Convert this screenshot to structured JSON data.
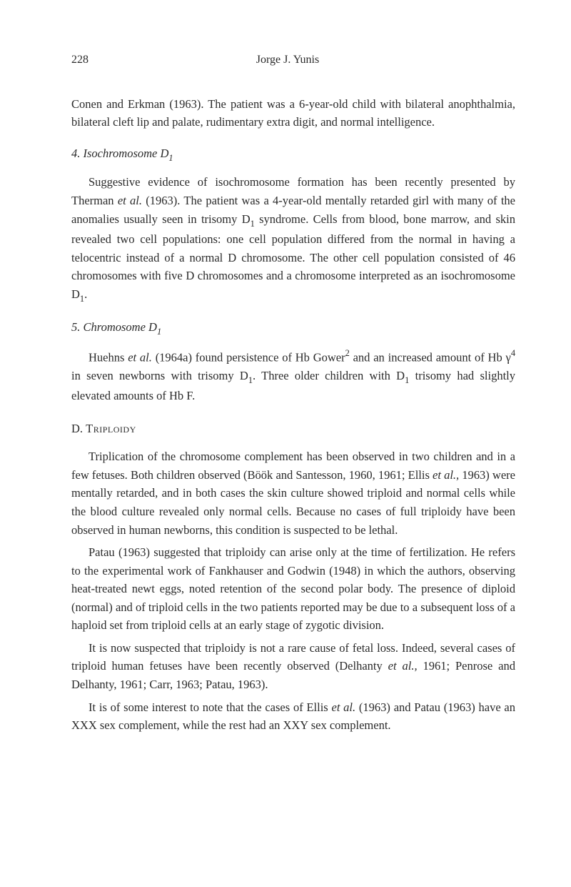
{
  "header": {
    "page_number": "228",
    "author": "Jorge J. Yunis"
  },
  "opening_paragraph": "Conen and Erkman (1963). The patient was a 6-year-old child with bilateral anophthalmia, bilateral cleft lip and palate, rudimentary extra digit, and normal intelligence.",
  "section_4": {
    "number": "4.",
    "title_prefix": "Isochromosome D",
    "title_sub": "1",
    "paragraph": "Suggestive evidence of isochromosome formation has been recently presented by Therman ",
    "paragraph_italic_1": "et al.",
    "paragraph_cont_1": " (1963). The patient was a 4-year-old mentally retarded girl with many of the anomalies usually seen in trisomy D",
    "paragraph_sub_1": "1",
    "paragraph_cont_2": " syndrome. Cells from blood, bone marrow, and skin revealed two cell populations: one cell population differed from the normal in having a telocentric instead of a normal D chromosome. The other cell population consisted of 46 chromosomes with five D chromosomes and a chromosome interpreted as an isochromosome D",
    "paragraph_sub_2": "1",
    "paragraph_end": "."
  },
  "section_5": {
    "number": "5.",
    "title_prefix": "Chromosome D",
    "title_sub": "1",
    "paragraph_1": "Huehns ",
    "paragraph_italic_1": "et al.",
    "paragraph_cont_1": " (1964a) found persistence of Hb Gower",
    "paragraph_sup_1": "2",
    "paragraph_cont_2": " and an increased amount of Hb γ",
    "paragraph_sup_2": "4",
    "paragraph_cont_3": " in seven newborns with trisomy D",
    "paragraph_sub_1": "1",
    "paragraph_cont_4": ". Three older children with D",
    "paragraph_sub_2": "1",
    "paragraph_cont_5": " trisomy had slightly elevated amounts of Hb F."
  },
  "section_d": {
    "label": "D.",
    "title": "Triploidy",
    "para_1_part_1": "Triplication of the chromosome complement has been observed in two children and in a few fetuses. Both children observed (Böök and Santesson, 1960, 1961; Ellis ",
    "para_1_italic_1": "et al.,",
    "para_1_part_2": " 1963) were mentally retarded, and in both cases the skin culture showed triploid and normal cells while the blood culture revealed only normal cells. Because no cases of full triploidy have been observed in human newborns, this condition is suspected to be lethal.",
    "para_2": "Patau (1963) suggested that triploidy can arise only at the time of fertilization. He refers to the experimental work of Fankhauser and Godwin (1948) in which the authors, observing heat-treated newt eggs, noted retention of the second polar body. The presence of diploid (normal) and of triploid cells in the two patients reported may be due to a subsequent loss of a haploid set from triploid cells at an early stage of zygotic division.",
    "para_3_part_1": "It is now suspected that triploidy is not a rare cause of fetal loss. Indeed, several cases of triploid human fetuses have been recently observed (Delhanty ",
    "para_3_italic_1": "et al.,",
    "para_3_part_2": " 1961; Penrose and Delhanty, 1961; Carr, 1963; Patau, 1963).",
    "para_4_part_1": "It is of some interest to note that the cases of Ellis ",
    "para_4_italic_1": "et al.",
    "para_4_part_2": " (1963) and Patau (1963) have an XXX sex complement, while the rest had an XXY sex complement."
  }
}
